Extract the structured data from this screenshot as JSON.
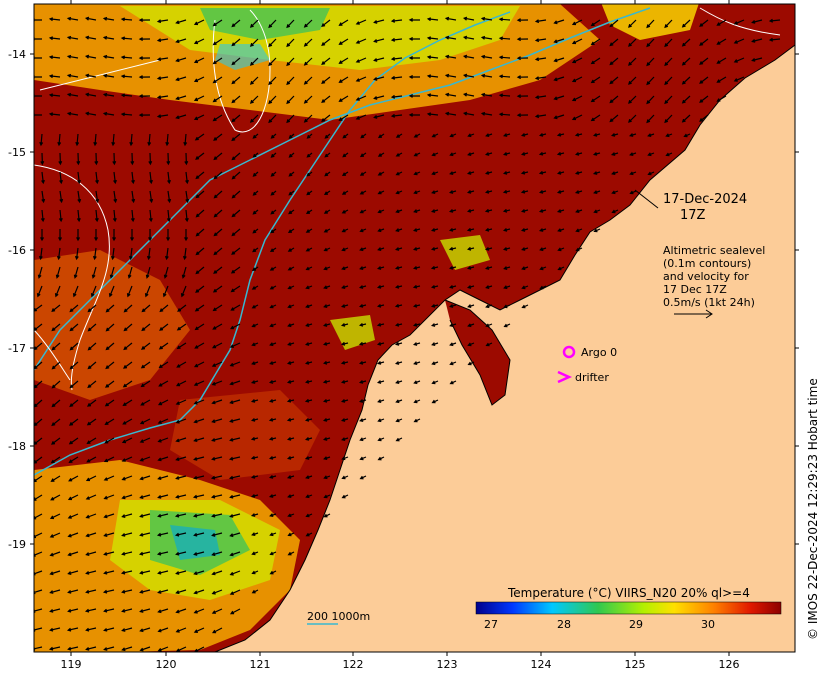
{
  "map": {
    "date": "17-Dec-2024",
    "time": "17Z",
    "legend_lines": [
      "Altimetric sealevel",
      "(0.1m contours)",
      "and velocity for",
      "17 Dec 17Z",
      "0.5m/s (1kt 24h)"
    ],
    "argo_label": "Argo 0",
    "drifter_label": "drifter",
    "scale_label": "200  1000m",
    "credit": "© IMOS 22-Dec-2024 12:29:23 Hobart time",
    "lat_ticks": [
      "-14",
      "-15",
      "-16",
      "-17",
      "-18",
      "-19"
    ],
    "lon_ticks": [
      "119",
      "120",
      "121",
      "122",
      "123",
      "124",
      "125",
      "126"
    ],
    "colorbar": {
      "title": "Temperature (°C) VIIRS_N20 20% ql>=4",
      "ticks": [
        "27",
        "28",
        "29",
        "30"
      ],
      "range": [
        26.75,
        30.75
      ]
    },
    "colors": {
      "land": "#fccc98",
      "warm_sea": "#9c0a00",
      "coast": "#000000",
      "isobath": "#38b8d0",
      "argo": "#ff00ff",
      "contour": "#ffffff"
    }
  }
}
